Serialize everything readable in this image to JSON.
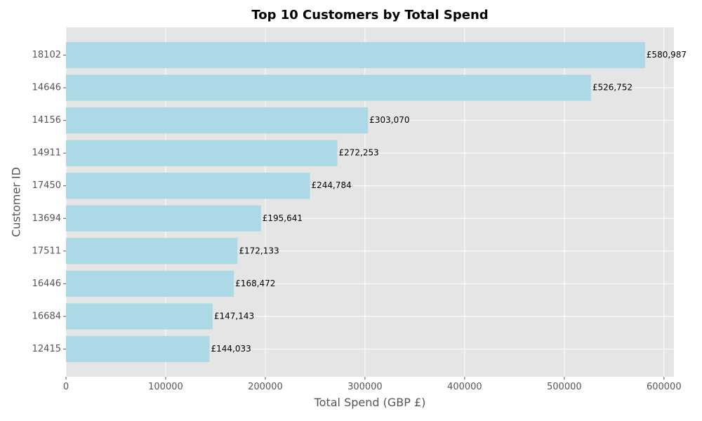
{
  "chart_data": {
    "type": "bar",
    "orientation": "horizontal",
    "title": "Top 10 Customers by Total Spend",
    "xlabel": "Total Spend (GBP £)",
    "ylabel": "Customer ID",
    "categories": [
      "18102",
      "14646",
      "14156",
      "14911",
      "17450",
      "13694",
      "17511",
      "16446",
      "16684",
      "12415"
    ],
    "values": [
      580987,
      526752,
      303070,
      272253,
      244784,
      195641,
      172133,
      168472,
      147143,
      144033
    ],
    "value_labels": [
      "£580,987",
      "£526,752",
      "£303,070",
      "£272,253",
      "£244,784",
      "£195,641",
      "£172,133",
      "£168,472",
      "£147,143",
      "£144,033"
    ],
    "xlim": [
      0,
      610000
    ],
    "x_ticks": [
      0,
      100000,
      200000,
      300000,
      400000,
      500000,
      600000
    ],
    "x_tick_labels": [
      "0",
      "100000",
      "200000",
      "300000",
      "400000",
      "500000",
      "600000"
    ],
    "grid": true,
    "colors": {
      "bar": "#add8e6",
      "plot_background": "#e5e5e5",
      "grid": "#ffffff",
      "tick_text": "#555555",
      "label_text": "#000000"
    }
  }
}
